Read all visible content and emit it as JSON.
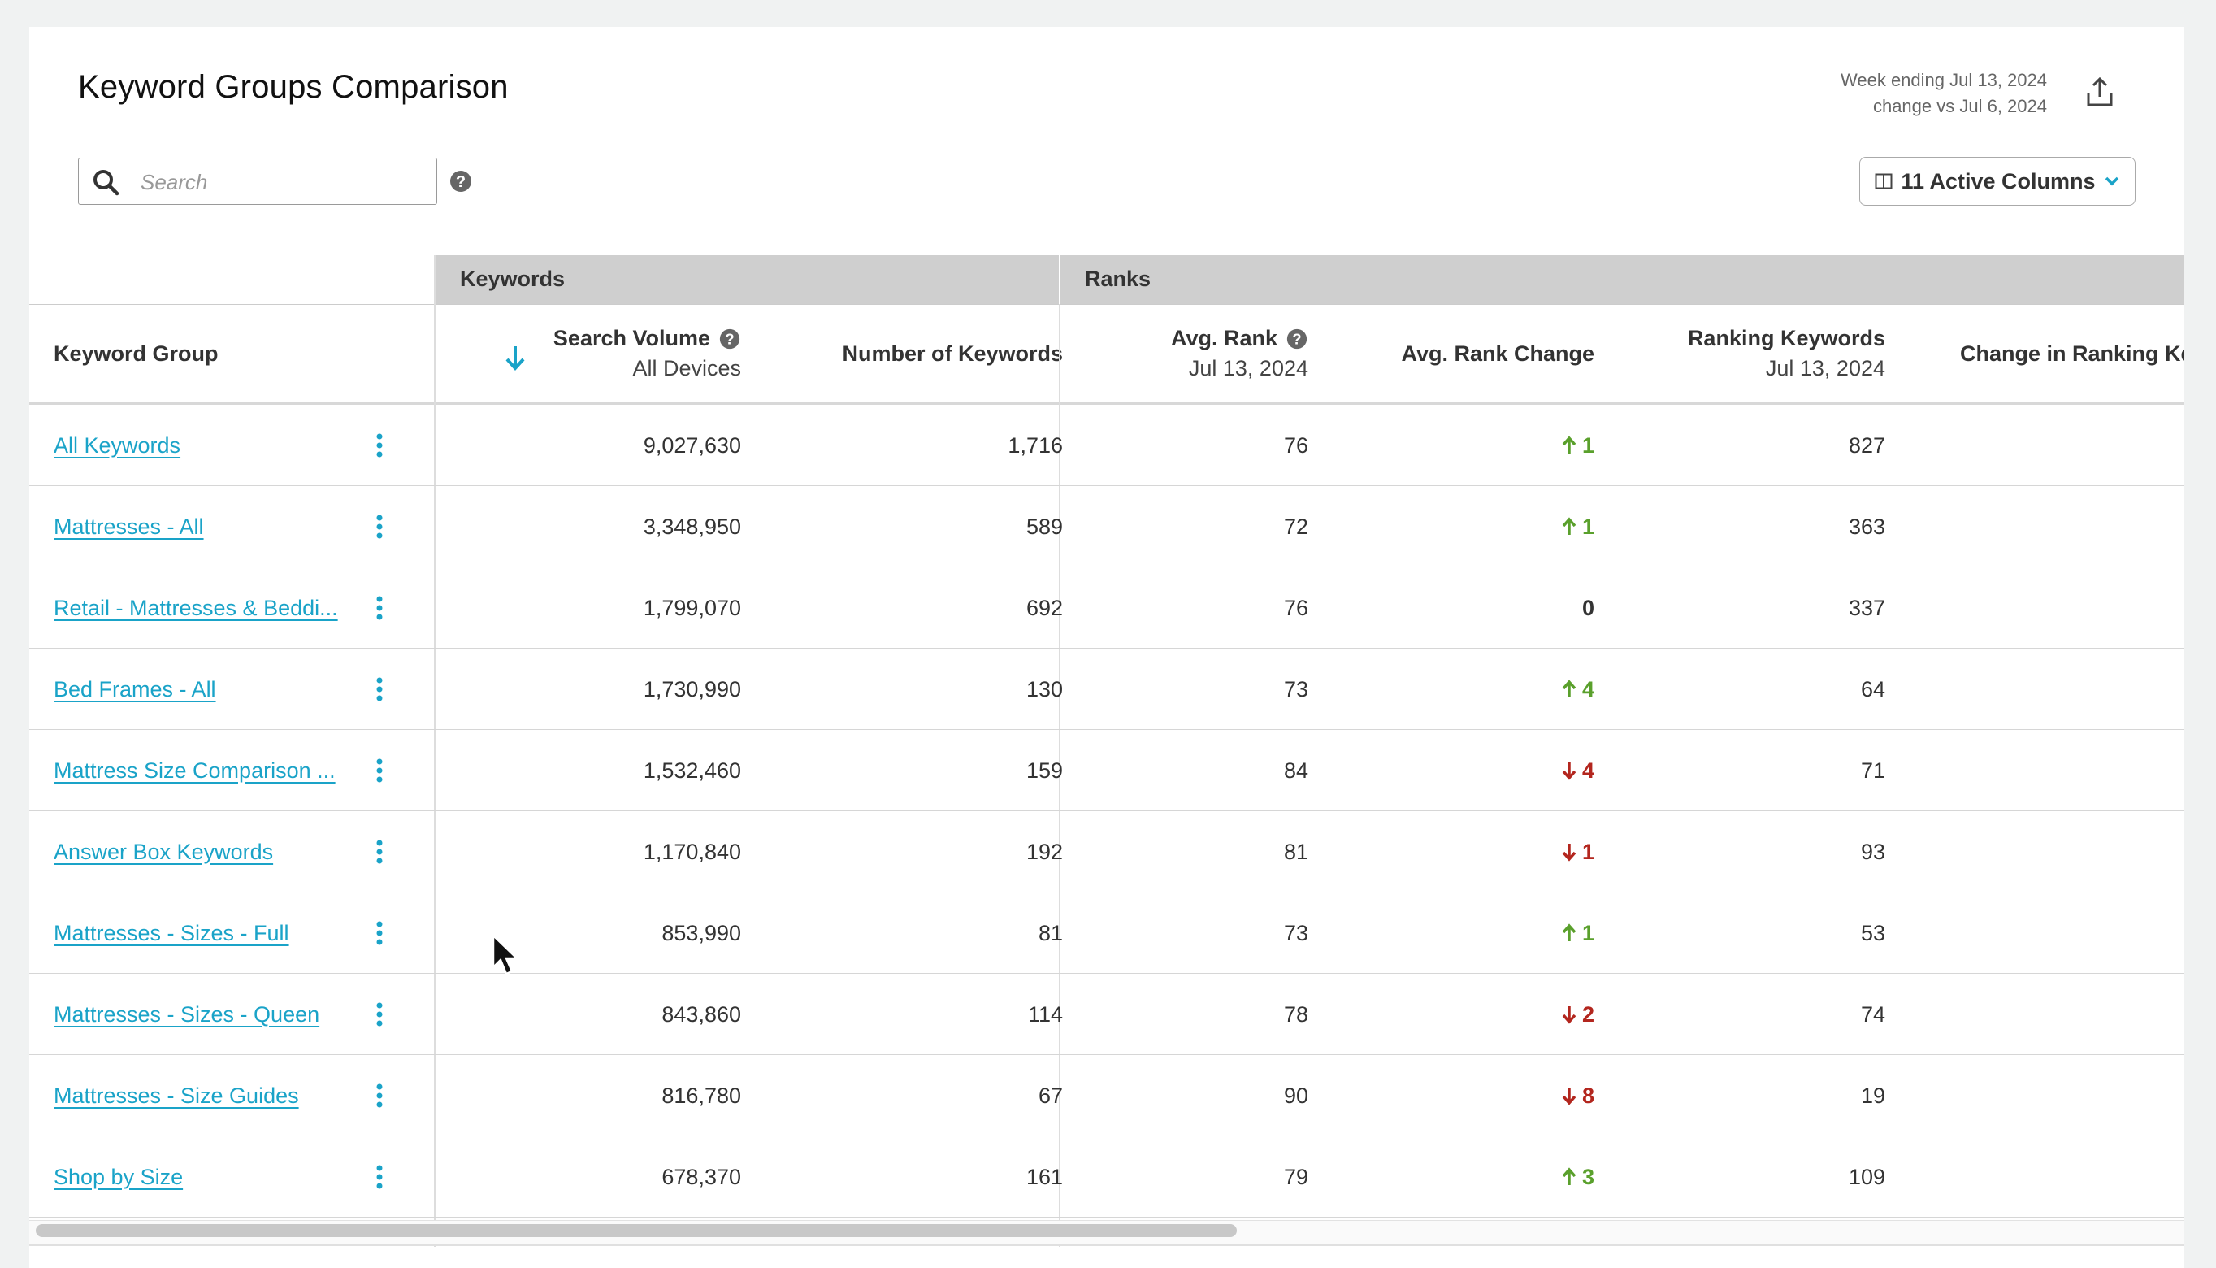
{
  "header": {
    "title": "Keyword Groups Comparison",
    "week_ending": "Week ending Jul 13, 2024",
    "change_vs": "change vs Jul 6, 2024",
    "export_icon": "share-upload-icon"
  },
  "search": {
    "placeholder": "Search",
    "value": ""
  },
  "columns_button": {
    "label": "11 Active Columns"
  },
  "column_groups": {
    "keywords": "Keywords",
    "ranks": "Ranks"
  },
  "columns": {
    "keyword_group": "Keyword Group",
    "search_volume": "Search Volume",
    "search_volume_sub": "All Devices",
    "num_keywords": "Number of Keywords",
    "avg_rank": "Avg. Rank",
    "avg_rank_sub": "Jul 13, 2024",
    "avg_rank_change": "Avg. Rank Change",
    "ranking_keywords": "Ranking Keywords",
    "ranking_keywords_sub": "Jul 13, 2024",
    "change_ranking": "Change in Ranking Ke"
  },
  "rows": [
    {
      "name": "All Keywords",
      "volume": "9,027,630",
      "count": "1,716",
      "avg_rank": "76",
      "change_dir": "up",
      "change": "1",
      "ranking": "827"
    },
    {
      "name": "Mattresses - All",
      "volume": "3,348,950",
      "count": "589",
      "avg_rank": "72",
      "change_dir": "up",
      "change": "1",
      "ranking": "363"
    },
    {
      "name": "Retail - Mattresses & Beddi...",
      "volume": "1,799,070",
      "count": "692",
      "avg_rank": "76",
      "change_dir": "none",
      "change": "0",
      "ranking": "337"
    },
    {
      "name": "Bed Frames - All",
      "volume": "1,730,990",
      "count": "130",
      "avg_rank": "73",
      "change_dir": "up",
      "change": "4",
      "ranking": "64"
    },
    {
      "name": "Mattress Size Comparison ...",
      "volume": "1,532,460",
      "count": "159",
      "avg_rank": "84",
      "change_dir": "down",
      "change": "4",
      "ranking": "71"
    },
    {
      "name": "Answer Box Keywords",
      "volume": "1,170,840",
      "count": "192",
      "avg_rank": "81",
      "change_dir": "down",
      "change": "1",
      "ranking": "93"
    },
    {
      "name": "Mattresses - Sizes - Full",
      "volume": "853,990",
      "count": "81",
      "avg_rank": "73",
      "change_dir": "up",
      "change": "1",
      "ranking": "53"
    },
    {
      "name": "Mattresses - Sizes - Queen",
      "volume": "843,860",
      "count": "114",
      "avg_rank": "78",
      "change_dir": "down",
      "change": "2",
      "ranking": "74"
    },
    {
      "name": "Mattresses - Size Guides",
      "volume": "816,780",
      "count": "67",
      "avg_rank": "90",
      "change_dir": "down",
      "change": "8",
      "ranking": "19"
    },
    {
      "name": "Shop by Size",
      "volume": "678,370",
      "count": "161",
      "avg_rank": "79",
      "change_dir": "up",
      "change": "3",
      "ranking": "109"
    }
  ],
  "colors": {
    "link": "#1aa3c8",
    "up": "#5aa02c",
    "down": "#b3261e"
  }
}
